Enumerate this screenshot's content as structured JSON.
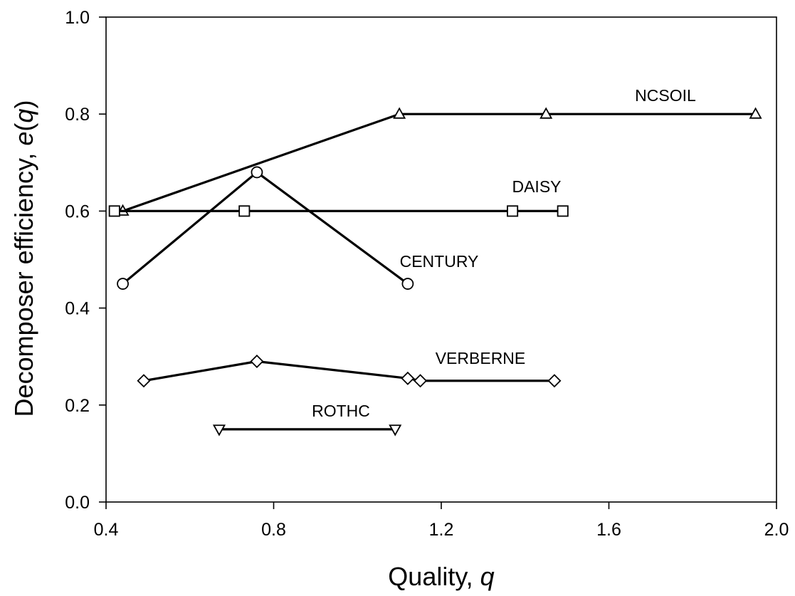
{
  "chart_data": {
    "type": "line",
    "xlabel_prefix": "Quality, ",
    "xlabel_var": "q",
    "ylabel_prefix": "Decomposer efficiency, ",
    "ylabel_var": "e",
    "ylabel_paren_open": "(",
    "ylabel_arg": "q",
    "ylabel_paren_close": ")",
    "xlim": [
      0.4,
      2.0
    ],
    "ylim": [
      0.0,
      1.0
    ],
    "xticks": [
      "0.4",
      "0.8",
      "1.2",
      "1.6",
      "2.0"
    ],
    "yticks": [
      "0.0",
      "0.2",
      "0.4",
      "0.6",
      "0.8",
      "1.0"
    ],
    "grid": false,
    "series": [
      {
        "name": "NCSOIL",
        "marker": "triangle-up",
        "x": [
          0.44,
          1.1,
          1.45,
          1.95
        ],
        "y": [
          0.6,
          0.8,
          0.8,
          0.8
        ]
      },
      {
        "name": "DAISY",
        "marker": "square",
        "x": [
          0.42,
          0.73,
          1.37,
          1.49
        ],
        "y": [
          0.6,
          0.6,
          0.6,
          0.6
        ]
      },
      {
        "name": "CENTURY",
        "marker": "circle",
        "x": [
          0.44,
          0.76,
          1.12
        ],
        "y": [
          0.45,
          0.68,
          0.45
        ]
      },
      {
        "name": "VERBERNE",
        "marker": "diamond",
        "x": [
          0.49,
          0.76,
          1.12,
          1.15,
          1.47
        ],
        "y": [
          0.25,
          0.29,
          0.255,
          0.25,
          0.25
        ]
      },
      {
        "name": "ROTHC",
        "marker": "triangle-down",
        "x": [
          0.67,
          1.09
        ],
        "y": [
          0.15,
          0.15
        ]
      }
    ]
  }
}
